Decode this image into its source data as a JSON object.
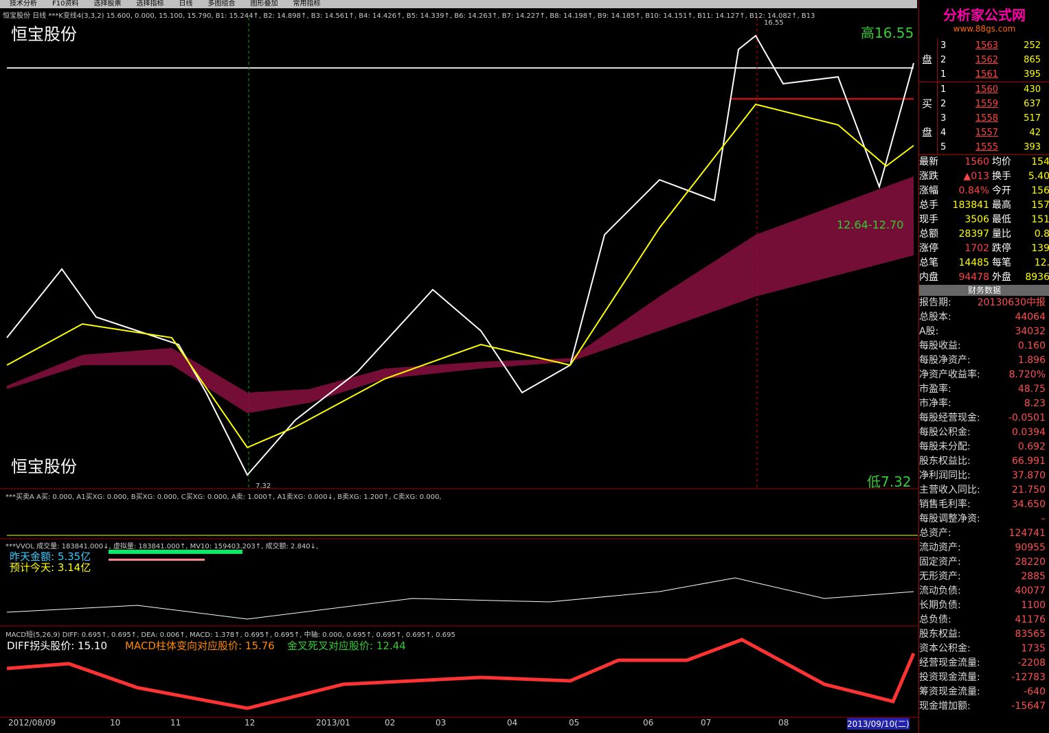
{
  "menu": [
    "技术分析",
    "F10资料",
    "选择股票",
    "选择指标",
    "日线",
    "多图组合",
    "图形叠加",
    "常用指标"
  ],
  "main": {
    "header": "恒宝股份 日线 ***K变线4(3,3,2) 15.600, 0.000, 15.100, 15.790, B1: 15.244↑, B2: 14.898↑, B3: 14.561↑, B4: 14.426↑, B5: 14.339↑, B6: 14.263↑, B7: 14.227↑, B8: 14.198↑, B9: 14.185↑, B10: 14.151↑, B11: 14.127↑, B12: 14.082↑, B13",
    "name_top": "恒宝股份",
    "name_bottom": "恒宝股份",
    "high": "高16.55",
    "low": "低7.32",
    "range": "12.64-12.70",
    "peak": "16.55",
    "trough": "7.32"
  },
  "signal": {
    "header": "***买卖A A买: 0.000, A1买XG: 0.000, B买XG: 0.000, C买XG: 0.000, A卖: 1.000↑, A1卖XG: 0.000↓, B卖XG: 1.200↑, C卖XG: 0.000,"
  },
  "volume": {
    "header": "***VVOL 成交量: 183841.000↓, 虚拟量: 183841.000↑, MV10: 159403.203↑, 成交额: 2.840↓,",
    "yesterday": "昨天金额: 5.35亿",
    "today": "预计今天: 3.14亿"
  },
  "macd": {
    "header": "MACD短(5,26,9) DIFF: 0.695↑, 0.695↑, DEA: 0.006↑, MACD: 1.378↑, 0.695↑, 0.695↑, 中轴: 0.000, 0.695↑, 0.695↑, 0.695↑, 0.695",
    "diff_price": "DIFF拐头股价: 15.10",
    "bar_price": "MACD柱体变向对应股价: 15.76",
    "cross_price": "金叉死叉对应股价: 12.44"
  },
  "xaxis": [
    "2012/08/09",
    "10",
    "11",
    "12",
    "2013/01",
    "02",
    "03",
    "04",
    "05",
    "06",
    "07",
    "08",
    "2013/09/10(二)"
  ],
  "logo": {
    "title": "分析家公式网",
    "url": "www.88gs.com"
  },
  "orderbook": {
    "sell_label": "盘",
    "buy_label_1": "买",
    "buy_label_2": "盘",
    "sell": [
      [
        "3",
        "1563",
        "252"
      ],
      [
        "2",
        "1562",
        "865"
      ],
      [
        "1",
        "1561",
        "395"
      ]
    ],
    "buy": [
      [
        "1",
        "1560",
        "430"
      ],
      [
        "2",
        "1559",
        "637"
      ],
      [
        "3",
        "1558",
        "517"
      ],
      [
        "4",
        "1557",
        "42"
      ],
      [
        "5",
        "1555",
        "393"
      ]
    ]
  },
  "quote": [
    [
      "最新",
      "1560",
      "均价",
      "154"
    ],
    [
      "涨跌",
      "▲013",
      "换手",
      "5.40"
    ],
    [
      "涨幅",
      "0.84%",
      "今开",
      "156"
    ],
    [
      "总手",
      "183841",
      "最高",
      "157"
    ],
    [
      "现手",
      "3506",
      "最低",
      "151"
    ],
    [
      "总额",
      "28397",
      "量比",
      "0.8"
    ],
    [
      "涨停",
      "1702",
      "跌停",
      "139"
    ],
    [
      "总笔",
      "14485",
      "每笔",
      "12."
    ],
    [
      "内盘",
      "94478",
      "外盘",
      "8936"
    ]
  ],
  "finance": {
    "title": "财务数据",
    "rows": [
      [
        "报告期:",
        "20130630中报"
      ],
      [
        "总股本:",
        "44064"
      ],
      [
        "A股:",
        "34032"
      ],
      [
        "每股收益:",
        "0.160"
      ],
      [
        "每股净资产:",
        "1.896"
      ],
      [
        "净资产收益率:",
        "8.720%"
      ],
      [
        "市盈率:",
        "48.75"
      ],
      [
        "市净率:",
        "8.23"
      ],
      [
        "每股经营现金:",
        "-0.0501"
      ],
      [
        "每股公积金:",
        "0.0394"
      ],
      [
        "每股未分配:",
        "0.692"
      ],
      [
        "股东权益比:",
        "66.991"
      ],
      [
        "净利润同比:",
        "37.870"
      ],
      [
        "主营收入同比:",
        "21.750"
      ],
      [
        "销售毛利率:",
        "34.650"
      ],
      [
        "每股调整净资:",
        "–"
      ],
      [
        "总资产:",
        "124741"
      ],
      [
        "流动资产:",
        "90955"
      ],
      [
        "固定资产:",
        "28220"
      ],
      [
        "无形资产:",
        "2885"
      ],
      [
        "流动负债:",
        "40077"
      ],
      [
        "长期负债:",
        "1100"
      ],
      [
        "总负债:",
        "41176"
      ],
      [
        "股东权益:",
        "83565"
      ],
      [
        "资本公积金:",
        "1735"
      ],
      [
        "经营现金流量:",
        "-2208"
      ],
      [
        "投资现金流量:",
        "-12783"
      ],
      [
        "筹资现金流量:",
        "-640"
      ],
      [
        "现金增加额:",
        "-15647"
      ]
    ]
  }
}
